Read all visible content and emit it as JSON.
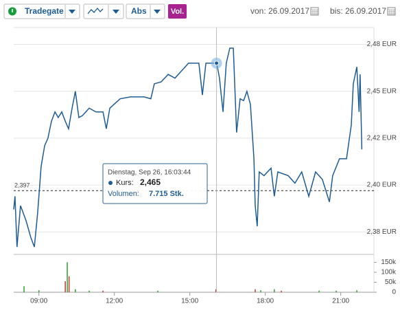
{
  "toolbar": {
    "exchange": "Tradegate",
    "scale": "Abs",
    "volume_button": "Vol.",
    "from_label": "von:",
    "from": "26.09.2017",
    "to_label": "bis:",
    "to": "26.09.2017"
  },
  "chart_data": {
    "type": "line",
    "x": [
      8.0,
      8.05,
      8.13,
      8.27,
      8.49,
      8.68,
      8.82,
      8.95,
      9.09,
      9.23,
      9.36,
      9.5,
      9.64,
      9.77,
      9.91,
      10.05,
      10.18,
      10.32,
      10.45,
      10.59,
      10.73,
      11.0,
      11.27,
      11.55,
      11.68,
      11.82,
      12.23,
      12.64,
      13.18,
      13.45,
      13.59,
      13.86,
      14.14,
      14.41,
      14.68,
      14.95,
      15.09,
      15.36,
      15.5,
      15.64,
      15.91,
      16.07,
      16.18,
      16.32,
      16.45,
      16.59,
      16.73,
      16.86,
      17.0,
      17.14,
      17.27,
      17.41,
      17.55,
      17.6,
      17.68,
      17.76,
      17.95,
      18.23,
      18.36,
      18.5,
      18.91,
      19.18,
      19.45,
      19.73,
      20.0,
      20.27,
      20.55,
      20.68,
      20.95,
      21.23,
      21.42,
      21.5,
      21.64,
      21.73,
      21.77,
      21.84
    ],
    "series": [
      {
        "color": "#1d5b94",
        "values": [
          2.387,
          2.394,
          2.367,
          2.389,
          2.381,
          2.372,
          2.367,
          2.385,
          2.41,
          2.421,
          2.425,
          2.434,
          2.439,
          2.436,
          2.439,
          2.434,
          2.43,
          2.441,
          2.45,
          2.436,
          2.437,
          2.441,
          2.439,
          2.439,
          2.43,
          2.441,
          2.446,
          2.447,
          2.447,
          2.446,
          2.454,
          2.455,
          2.459,
          2.457,
          2.461,
          2.465,
          2.465,
          2.465,
          2.448,
          2.465,
          2.465,
          2.465,
          2.457,
          2.439,
          2.465,
          2.473,
          2.473,
          2.428,
          2.446,
          2.445,
          2.45,
          2.443,
          2.414,
          2.389,
          2.378,
          2.407,
          2.405,
          2.409,
          2.394,
          2.407,
          2.405,
          2.401,
          2.407,
          2.394,
          2.407,
          2.403,
          2.391,
          2.405,
          2.414,
          2.414,
          2.432,
          2.454,
          2.463,
          2.439,
          2.459,
          2.419
        ]
      }
    ],
    "xlim": [
      8.0,
      22.32
    ],
    "xticks": [
      {
        "value": 9,
        "label": "09:00"
      },
      {
        "value": 12,
        "label": "12:00"
      },
      {
        "value": 15,
        "label": "15:00"
      },
      {
        "value": 18,
        "label": "18:00"
      },
      {
        "value": 21,
        "label": "21:00"
      }
    ],
    "ylim": [
      2.363,
      2.484
    ],
    "yticks": [
      {
        "value": 2.375,
        "label": "2,38 EUR"
      },
      {
        "value": 2.4,
        "label": "2,40 EUR"
      },
      {
        "value": 2.425,
        "label": "2,42 EUR"
      },
      {
        "value": 2.45,
        "label": "2,45 EUR"
      },
      {
        "value": 2.475,
        "label": "2,48 EUR"
      }
    ],
    "grid": true,
    "reference": {
      "value": 2.397,
      "label": "2,397"
    },
    "tooltip": {
      "time": "Dienstag, Sep 26, 16:03:44",
      "price_label": "Kurs:",
      "price": {
        "value": 2.465,
        "label": "2,465"
      },
      "volume_label": "Volumen:",
      "volume": {
        "value": 7715,
        "label": "7.715 Stk."
      }
    },
    "volume": {
      "x": [
        8.41,
        9.0,
        10.05,
        10.13,
        10.2,
        10.45,
        11.0,
        11.55,
        13.73,
        16.04,
        17.6,
        17.82,
        18.36,
        18.64,
        20.14,
        20.82,
        21.64
      ],
      "values": [
        30000,
        10000,
        55000,
        150000,
        80000,
        15000,
        8000,
        8000,
        8000,
        15000,
        15000,
        10000,
        15000,
        8000,
        8000,
        8000,
        10000
      ],
      "colors": [
        "#2ca02c",
        "#2ca02c",
        "#c0392b",
        "#2ca02c",
        "#c0392b",
        "#2ca02c",
        "#2ca02c",
        "#c0392b",
        "#2ca02c",
        "#c0392b",
        "#c0392b",
        "#2ca02c",
        "#2ca02c",
        "#c0392b",
        "#2ca02c",
        "#2ca02c",
        "#2ca02c"
      ],
      "ylim": [
        0,
        179000
      ],
      "yticks": [
        0,
        {
          "value": 50000,
          "label": "50k"
        },
        {
          "value": 100000,
          "label": "100k"
        },
        {
          "value": 150000,
          "label": "150k"
        }
      ]
    }
  }
}
